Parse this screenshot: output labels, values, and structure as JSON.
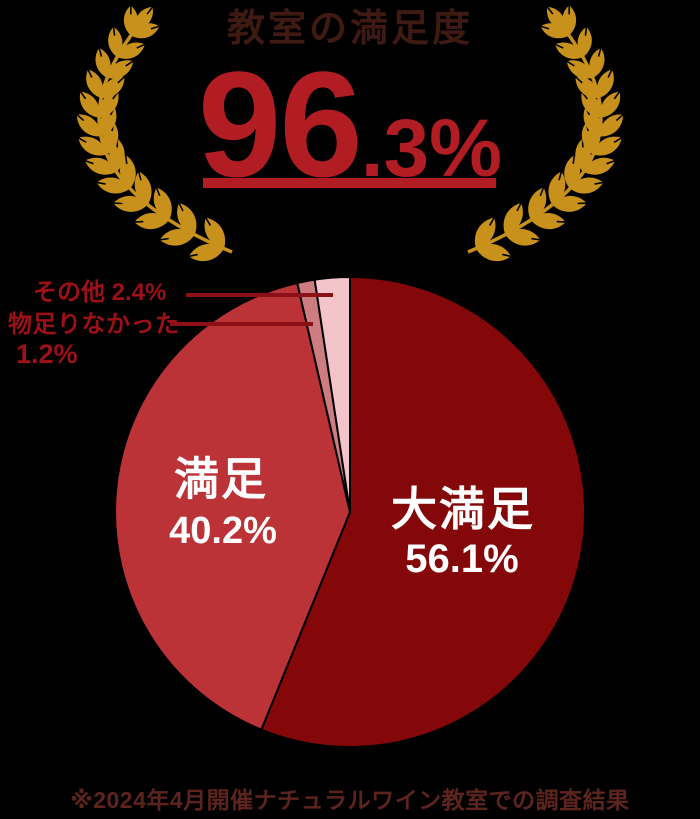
{
  "page": {
    "background": "#000000"
  },
  "header": {
    "title": "教室の満足度",
    "title_color": "#3f1a13",
    "score_large": "96",
    "score_small": ".3%",
    "score_full": "96.3%",
    "score_color": "#b21c23"
  },
  "wreath": {
    "icon": "laurel-wreath-icon",
    "color": "#c8911c"
  },
  "chart_data": {
    "type": "pie",
    "title": "教室の満足度 96.3%",
    "categories": [
      "大満足",
      "満足",
      "物足りなかった",
      "その他"
    ],
    "values": [
      56.1,
      40.2,
      1.2,
      2.4
    ],
    "display_values": [
      "56.1%",
      "40.2%",
      "1.2%",
      "2.4%"
    ],
    "colors": [
      "#840709",
      "#bb3237",
      "#cd7c80",
      "#f3c5cb"
    ],
    "slice_keys": [
      "very-satisfied",
      "satisfied",
      "unsatisfying",
      "other"
    ],
    "start_angle_deg": 0,
    "direction": "clockwise",
    "stroke_color": "#000000",
    "legend_position": "none",
    "labels_inside": [
      "大満足 56.1%",
      "満足 40.2%"
    ],
    "labels_callout": [
      "その他 2.4%",
      "物足りなかった 1.2%"
    ]
  },
  "callouts": {
    "other_label": "その他 2.4%",
    "not_enough_label": "物足りなかった",
    "not_enough_value": "1.2%",
    "text_color": "#9c1016",
    "line_color": "#8c1016"
  },
  "footnote": {
    "text": "※2024年4月開催ナチュラルワイン教室での調査結果",
    "color": "#5d231d"
  }
}
